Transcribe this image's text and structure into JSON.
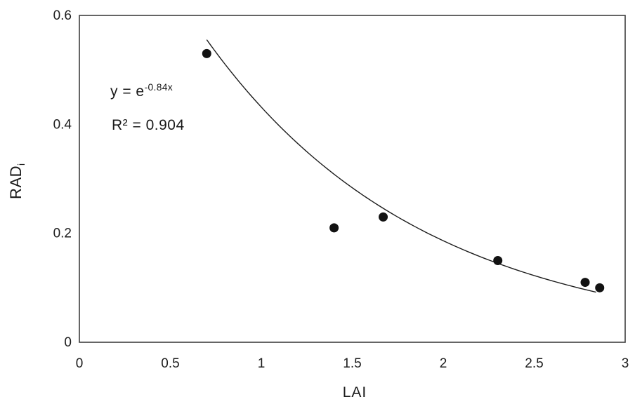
{
  "chart_data": {
    "type": "scatter",
    "title": "",
    "xlabel": "LAI",
    "ylabel": "RAD",
    "ylabel_subscript": "i",
    "xlim": [
      0,
      3
    ],
    "ylim": [
      0,
      0.6
    ],
    "x_ticks": [
      0,
      0.5,
      1,
      1.5,
      2,
      2.5,
      3
    ],
    "x_tick_labels": [
      "0",
      "0.5",
      "1",
      "1.5",
      "2",
      "2.5",
      "3"
    ],
    "y_ticks": [
      0,
      0.2,
      0.4,
      0.6
    ],
    "y_tick_labels": [
      "0",
      "0.2",
      "0.4",
      "0.6"
    ],
    "points": [
      {
        "x": 0.7,
        "y": 0.53
      },
      {
        "x": 1.4,
        "y": 0.21
      },
      {
        "x": 1.67,
        "y": 0.23
      },
      {
        "x": 2.3,
        "y": 0.15
      },
      {
        "x": 2.78,
        "y": 0.11
      },
      {
        "x": 2.86,
        "y": 0.1
      }
    ],
    "fit": {
      "type": "exponential",
      "coefficient": -0.84,
      "x_start": 0.7,
      "x_end": 2.85
    },
    "annotation": {
      "equation_prefix": "y = e",
      "equation_exponent": "-0.84x",
      "r_squared": "R² = 0.904"
    },
    "colors": {
      "point": "#121212",
      "curve": "#1c1c1c",
      "frame": "#3f3f3f",
      "text": "#1c1c1c"
    },
    "grid": false,
    "legend": false
  }
}
